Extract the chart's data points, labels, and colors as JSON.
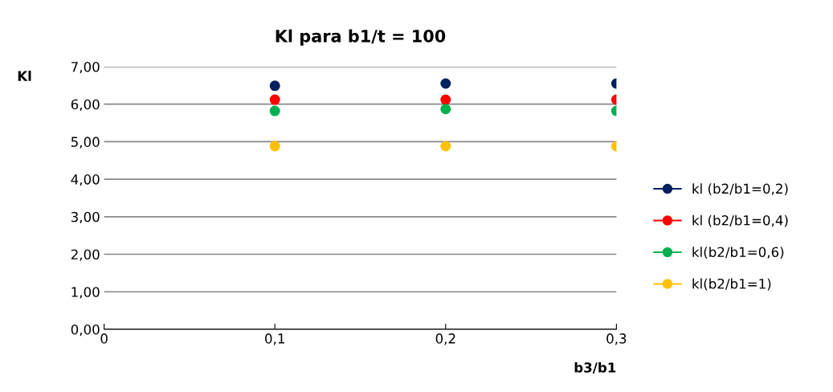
{
  "chart_data": {
    "type": "scatter",
    "title": "Kl para b1/t = 100",
    "xlabel": "b3/b1",
    "ylabel": "Kl",
    "x": [
      0.1,
      0.2,
      0.3
    ],
    "xlim": [
      0,
      0.3
    ],
    "xticks": [
      {
        "value": 0,
        "label": "0"
      },
      {
        "value": 0.1,
        "label": "0,1"
      },
      {
        "value": 0.2,
        "label": "0,2"
      },
      {
        "value": 0.3,
        "label": "0,3"
      }
    ],
    "ylim": [
      0,
      7
    ],
    "yticks": [
      {
        "value": 0,
        "label": "0,00"
      },
      {
        "value": 1,
        "label": "1,00"
      },
      {
        "value": 2,
        "label": "2,00"
      },
      {
        "value": 3,
        "label": "3,00"
      },
      {
        "value": 4,
        "label": "4,00"
      },
      {
        "value": 5,
        "label": "5,00"
      },
      {
        "value": 6,
        "label": "6,00"
      },
      {
        "value": 7,
        "label": "7,00"
      }
    ],
    "grid": "y",
    "legend": "right",
    "marker": "circle",
    "series": [
      {
        "name": "kl (b2/b1=0,2)",
        "color": "#002060",
        "values": [
          6.49,
          6.55,
          6.55
        ]
      },
      {
        "name": "kl (b2/b1=0,4)",
        "color": "#ff0000",
        "values": [
          6.12,
          6.12,
          6.12
        ]
      },
      {
        "name": "kl(b2/b1=0,6)",
        "color": "#00b050",
        "values": [
          5.82,
          5.87,
          5.82
        ]
      },
      {
        "name": "kl(b2/b1=1)",
        "color": "#ffc000",
        "values": [
          4.88,
          4.88,
          4.88
        ]
      }
    ]
  }
}
